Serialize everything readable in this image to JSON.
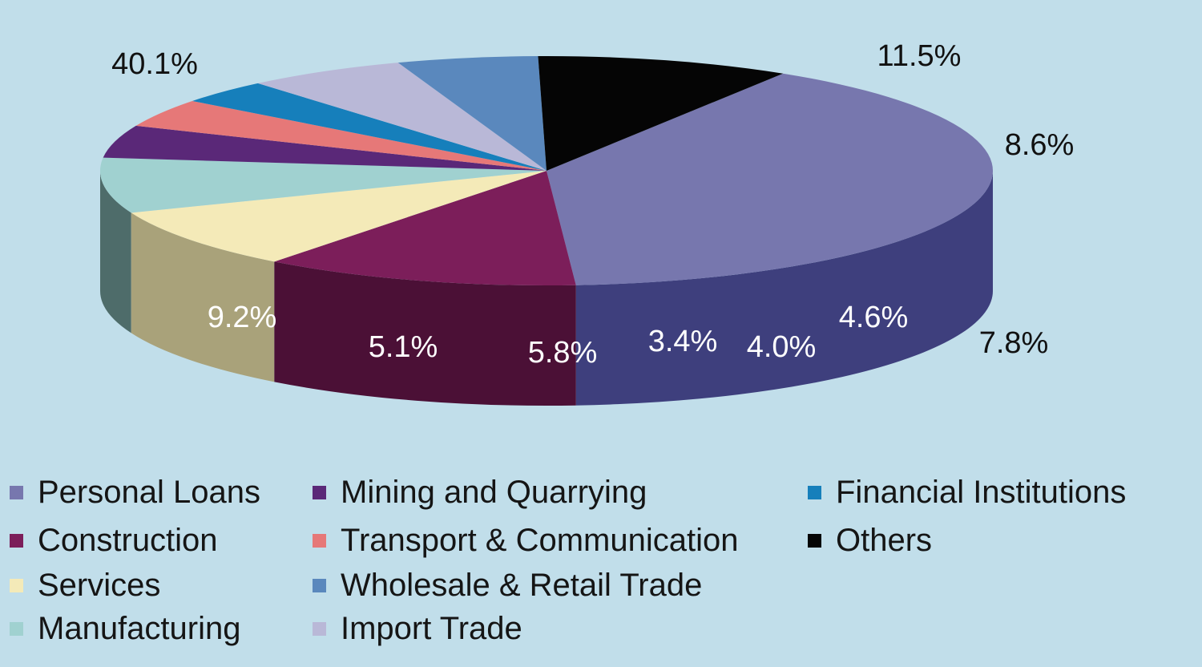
{
  "chart_data": {
    "type": "pie",
    "title": "",
    "legend_position": "bottom",
    "slices": [
      {
        "name": "Personal Loans",
        "value": 40.1,
        "label": "40.1%",
        "color": "#7777ae",
        "side_color": "#3e3f7d"
      },
      {
        "name": "Construction",
        "value": 11.5,
        "label": "11.5%",
        "color": "#7c1e5a",
        "side_color": "#4b1036"
      },
      {
        "name": "Services",
        "value": 8.6,
        "label": "8.6%",
        "color": "#f4eab8",
        "side_color": "#a9a27a"
      },
      {
        "name": "Manufacturing",
        "value": 7.8,
        "label": "7.8%",
        "color": "#a0d1d0",
        "side_color": "#4e6c6a"
      },
      {
        "name": "Mining and Quarrying",
        "value": 4.6,
        "label": "4.6%",
        "color": "#5a2878",
        "side_color": "#2c1837"
      },
      {
        "name": "Transport & Communication",
        "value": 4.0,
        "label": "4.0%",
        "color": "#e67878",
        "side_color": "#7a3a3e"
      },
      {
        "name": "Financial Institutions",
        "value": 3.4,
        "label": "3.4%",
        "color": "#167fbb",
        "side_color": "#0a3a5a"
      },
      {
        "name": "Import Trade",
        "value": 5.8,
        "label": "5.8%",
        "color": "#b9b8d7",
        "side_color": "#5d5b7b"
      },
      {
        "name": "Wholesale & Retail Trade",
        "value": 5.1,
        "label": "5.1%",
        "color": "#5a88bd",
        "side_color": "#2b4468"
      },
      {
        "name": "Others",
        "value": 9.2,
        "label": "9.2%",
        "color": "#050505",
        "side_color": "#000000"
      }
    ]
  },
  "legend": {
    "columns": [
      [
        "Personal Loans",
        "Construction",
        "Services",
        "Manufacturing"
      ],
      [
        "Mining and Quarrying",
        "Transport & Communication",
        "Wholesale & Retail Trade",
        "Import Trade"
      ],
      [
        "Financial Institutions",
        "Others"
      ]
    ]
  }
}
